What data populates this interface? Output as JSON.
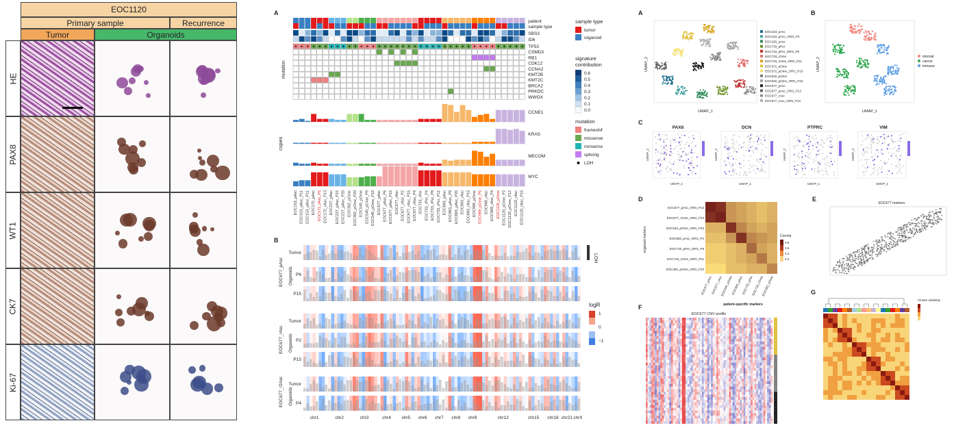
{
  "left": {
    "title": "EOC1120",
    "header_primary": "Primary sample",
    "header_recurrence": "Recurrence",
    "header_tumor": "Tumor",
    "header_organoids": "Organoids",
    "rows": [
      "HE",
      "PAX8",
      "WT1",
      "CK7",
      "Ki-67"
    ],
    "colors": {
      "header": "#f6d4a4",
      "organoids": "#45b86a",
      "tumor": "#f2a65a"
    }
  },
  "panel_letters": {
    "a1": "A",
    "b1": "B",
    "a2": "A",
    "b2": "B",
    "c2": "C",
    "d2": "D",
    "e2": "E",
    "f2": "F",
    "g2": "G"
  },
  "oncoprint": {
    "track_labels": [
      "patient",
      "sample type"
    ],
    "signature_labels": [
      "SBS3",
      "ID6"
    ],
    "genes": [
      "TP53",
      "CSMD3",
      "RB1",
      "CDK12",
      "CCNA2",
      "KMT2B",
      "KMT2C",
      "BRCA2",
      "PRKDC",
      "WWOX"
    ],
    "mutation_axis": "mutation",
    "copies_axis": "copies",
    "cnv_genes": [
      "CCNE1",
      "KRAS",
      "MECOM",
      "MYC"
    ],
    "samples": [
      "EOC153_pAsc",
      "EOC153_pAsc_P11",
      "EOC153_pAsc_P11",
      "EOC172_pAsc",
      "EOC172_rAsc_P5",
      "EOC172_rAsc_P13",
      "EOC227_pAsc",
      "EOC227_pAsc_P15",
      "EOC227_pAsc_P20",
      "EOC382_pOme",
      "EOC382_pOme_P20",
      "EOC540_pOme",
      "EOC540_pOme_P9",
      "EOC540_pOme_P16",
      "EOC677_pAsc",
      "EOC677_pAsc_P6",
      "EOC677_pAsc_P15",
      "EOC677_rAsc",
      "EOC677_rAsc_P2",
      "EOC677_rAsc_P15",
      "EOC677_rAsc_P4",
      "EOC733_rPer",
      "EOC733_rPer_P4",
      "EOC733_rPer_P8",
      "EOC733_rPer_P11",
      "EOC883_pAsc",
      "EOC883_pAsc_P8",
      "EOC883_pAsc_P20",
      "EOC883_rAsc",
      "EOC883_rAsc_P15",
      "EOC989_pOme",
      "EOC989_pOme_P5",
      "EOC989_rAsc",
      "EOC989_rAsc_P4",
      "EOC1120_pOme",
      "EOC1120_pOme_P3",
      "EOC1120_pOme_P12",
      "EOC1120_rAsc",
      "EOC1120_rAsc_P15"
    ],
    "legend_sample_type_title": "sample type",
    "legend_sample_type": [
      {
        "label": "tumor",
        "color": "#e31a1c"
      },
      {
        "label": "organoid",
        "color": "#3a7fc1"
      }
    ],
    "legend_signature_title": "signature contribution",
    "legend_signature_ticks": [
      "0.6",
      "0.5",
      "0.4",
      "0.3",
      "0.2",
      "0.1",
      "0.0"
    ],
    "legend_mutation_title": "mutation",
    "legend_mutation": [
      {
        "label": "frameshift",
        "color": "#f07f7f"
      },
      {
        "label": "missense",
        "color": "#6aa84f"
      },
      {
        "label": "nonsense",
        "color": "#23b5b5"
      },
      {
        "label": "splicing",
        "color": "#c27bf2"
      },
      {
        "label": "LOH",
        "color": "#111111"
      }
    ],
    "patient_colors": [
      "#3a7fc1",
      "#e31a1c",
      "#69b3e7",
      "#b6e28a",
      "#4daf4a",
      "#f4a6a6",
      "#e31a1c",
      "#f7b86b",
      "#ff7f00",
      "#c8b3e0",
      "#6a3d9a"
    ],
    "cnv_heights": {
      "CCNE1": [
        2,
        3,
        1,
        8,
        3,
        3,
        3,
        2,
        2,
        8,
        8,
        8,
        2,
        2,
        2,
        2,
        2,
        2,
        2,
        2,
        2,
        3,
        3,
        3,
        3,
        18,
        17,
        10,
        17,
        12,
        5,
        7,
        8,
        3,
        12,
        12,
        12,
        12,
        12
      ],
      "KRAS": [
        1,
        1,
        1,
        1,
        1,
        1,
        1,
        1,
        1,
        1,
        1,
        1,
        1,
        1,
        1,
        1,
        1,
        1,
        1,
        1,
        1,
        1,
        1,
        1,
        1,
        1,
        1,
        1,
        1,
        1,
        2,
        2,
        2,
        2,
        15,
        15,
        14,
        15,
        13
      ],
      "MECOM": [
        3,
        2,
        2,
        3,
        2,
        2,
        2,
        2,
        2,
        2,
        2,
        2,
        2,
        2,
        2,
        2,
        2,
        2,
        2,
        2,
        2,
        3,
        2,
        2,
        2,
        6,
        5,
        6,
        6,
        6,
        15,
        14,
        9,
        12,
        6,
        6,
        6,
        6,
        6
      ],
      "MYC": [
        5,
        6,
        6,
        14,
        14,
        14,
        12,
        12,
        12,
        9,
        9,
        9,
        10,
        10,
        10,
        20,
        20,
        20,
        20,
        20,
        20,
        16,
        16,
        16,
        16,
        14,
        14,
        14,
        14,
        14,
        12,
        12,
        12,
        12,
        12,
        12,
        12,
        12,
        12
      ]
    }
  },
  "cnv_heatmap": {
    "chromosomes": [
      "chr1",
      "chr2",
      "chr3",
      "chr4",
      "chr5",
      "chr6",
      "chr7",
      "chr8",
      "chr9",
      "chr12",
      "chr15",
      "chr18",
      "chr21",
      "chrX"
    ],
    "group_labels": [
      "EOC677_pAsc",
      "EOC677_rAsc",
      "EOC677_r2Asc"
    ],
    "row_labels": [
      "Tumor",
      "P6",
      "P15",
      "Tumor",
      "P2",
      "P15",
      "Tumor",
      "P4"
    ],
    "side_labels": [
      "Organoids",
      "Organoids",
      "Organoids"
    ],
    "legend_title": "logR",
    "legend_ticks": [
      "1",
      "0",
      "−1"
    ],
    "loh_label": "LOH"
  },
  "right": {
    "umap_x": "UMAP_1",
    "umap_y": "UMAP_2",
    "umap_legend_a": [
      {
        "label": "EOC153_pAsc",
        "color": "#1b6e8a"
      },
      {
        "label": "EOC153_pAsc_ORG_P4",
        "color": "#4aa3a3"
      },
      {
        "label": "EOC183_pAsc",
        "color": "#2e8b57"
      },
      {
        "label": "EOC733_pPer",
        "color": "#6b8e23"
      },
      {
        "label": "EOC733_pPer_ORG_P8",
        "color": "#c03030"
      },
      {
        "label": "EOC733_rOme",
        "color": "#e07070"
      },
      {
        "label": "EOC733_rOme_ORG_P11",
        "color": "#d9a520"
      },
      {
        "label": "EOC372_pOme",
        "color": "#e0c040"
      },
      {
        "label": "EOC372_pOme_ORG_P10",
        "color": "#f2e070"
      },
      {
        "label": "EOC540_pOme",
        "color": "#808080"
      },
      {
        "label": "EOC540_pOme_ORG_P10",
        "color": "#a0a0a0"
      },
      {
        "label": "EOC677_pAsc",
        "color": "#202020"
      },
      {
        "label": "EOC677_pAsc_ORG_P13",
        "color": "#606060"
      },
      {
        "label": "EOC677_rAsc",
        "color": "#909090"
      },
      {
        "label": "EOC677_rAsc_ORG_P13",
        "color": "#b0b0b0"
      }
    ],
    "umap_legend_b": [
      {
        "label": "stromal",
        "color": "#f4837d"
      },
      {
        "label": "cancer",
        "color": "#2fa84f"
      },
      {
        "label": "immune",
        "color": "#5b9de6"
      }
    ],
    "feature_titles": [
      "PAX8",
      "DCN",
      "PTPRC",
      "VIM"
    ],
    "corr_rows": [
      "EOC677_pAsc_ORG_P13",
      "EOC677_rOme_ORG_P13",
      "EOC540_pOme_ORG_P10",
      "EOC883_pAsc_ORG_P4",
      "EOC733_pPer_ORG_P8",
      "EOC733_rOme_ORG_P11",
      "EOC382_pOme_ORG_P10"
    ],
    "corr_cols": [
      "EOC677_pAsc",
      "EOC677_rAsc",
      "EOC540_pOme",
      "EOC883_pAsc",
      "EOC733_pPer",
      "EOC733_rOme",
      "EOC382_pOme"
    ],
    "corr_xlabel": "patient-specific markers",
    "corr_ylabel": "organoid markers",
    "corr_legend": "Correlation",
    "corr_legend_ticks": [
      "0.8",
      "0.6",
      "0.4",
      "0.2"
    ],
    "corr_values": [
      [
        0.85,
        0.8,
        0.45,
        0.4,
        0.35,
        0.3,
        0.35
      ],
      [
        0.8,
        0.85,
        0.45,
        0.4,
        0.35,
        0.3,
        0.35
      ],
      [
        0.35,
        0.35,
        0.8,
        0.5,
        0.4,
        0.35,
        0.4
      ],
      [
        0.3,
        0.3,
        0.45,
        0.8,
        0.5,
        0.45,
        0.4
      ],
      [
        0.25,
        0.25,
        0.3,
        0.35,
        0.6,
        0.4,
        0.35
      ],
      [
        0.25,
        0.25,
        0.3,
        0.35,
        0.4,
        0.55,
        0.35
      ],
      [
        0.2,
        0.2,
        0.3,
        0.3,
        0.35,
        0.35,
        0.5
      ]
    ],
    "scatter_title": "EOC677 markers",
    "cnv_profile_title": "EOC677 CNV profile",
    "cluster_legend": "Cluster similarity"
  }
}
